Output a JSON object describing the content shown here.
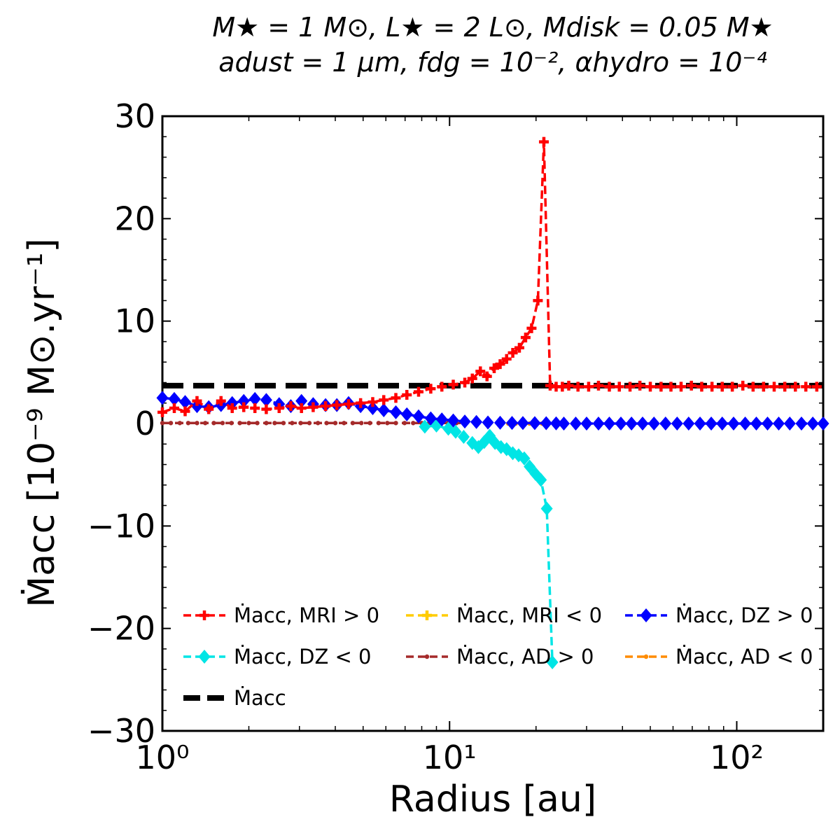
{
  "chart_data": {
    "type": "line",
    "title_lines": [
      "M★ = 1 M⊙, L★ = 2 L⊙, Mdisk = 0.05 M★",
      "adust = 1 μm, fdg = 10⁻², αhydro = 10⁻⁴"
    ],
    "xlabel": "Radius [au]",
    "ylabel": "Ṁacc [10⁻⁹ M⊙.yr⁻¹]",
    "xscale": "log",
    "xlim": [
      1,
      200
    ],
    "ylim": [
      -30,
      30
    ],
    "x_ticks": [
      {
        "value": 1,
        "label": "10⁰"
      },
      {
        "value": 10,
        "label": "10¹"
      },
      {
        "value": 100,
        "label": "10²"
      }
    ],
    "y_ticks": [
      {
        "value": 30,
        "label": "30"
      },
      {
        "value": 20,
        "label": "20"
      },
      {
        "value": 10,
        "label": "10"
      },
      {
        "value": 0,
        "label": "0"
      },
      {
        "value": -10,
        "label": "−10"
      },
      {
        "value": -20,
        "label": "−20"
      },
      {
        "value": -30,
        "label": "−30"
      }
    ],
    "legend_position": "lower-center",
    "series": [
      {
        "name": "Ṁacc, MRI > 0",
        "color": "#ff0000",
        "marker": "plus",
        "x": [
          1.0,
          1.1,
          1.2,
          1.32,
          1.45,
          1.6,
          1.75,
          1.92,
          2.1,
          2.3,
          2.55,
          2.8,
          3.05,
          3.35,
          3.7,
          4.05,
          4.45,
          4.9,
          5.4,
          5.9,
          6.5,
          7.1,
          7.8,
          8.6,
          9.4,
          10.3,
          11.3,
          12.0,
          12.8,
          13.5,
          14.3,
          15.0,
          15.8,
          16.6,
          17.5,
          18.4,
          19.3,
          20.3,
          21.3,
          22.4,
          23.5,
          24.7,
          26.0,
          28.0,
          30.5,
          33.0,
          36.0,
          39.0,
          42.5,
          46.0,
          50.0,
          54.5,
          59.0,
          64.0,
          69.5,
          75.5,
          82.0,
          89.0,
          96.5,
          105.0,
          114.0,
          124.0,
          135.0,
          147.0,
          160.0,
          174.0,
          190.0
        ],
        "y": [
          1.1,
          1.5,
          1.2,
          2.2,
          1.4,
          2.2,
          1.5,
          1.6,
          1.5,
          1.4,
          1.5,
          1.7,
          1.5,
          1.6,
          1.7,
          1.8,
          1.9,
          2.0,
          2.1,
          2.3,
          2.5,
          2.8,
          3.1,
          3.4,
          3.6,
          3.8,
          4.0,
          4.4,
          5.1,
          4.6,
          5.4,
          5.8,
          6.3,
          6.9,
          7.4,
          8.4,
          9.3,
          12.0,
          27.5,
          3.7,
          3.6,
          3.6,
          3.7,
          3.6,
          3.6,
          3.7,
          3.6,
          3.6,
          3.6,
          3.7,
          3.6,
          3.6,
          3.6,
          3.6,
          3.7,
          3.6,
          3.6,
          3.6,
          3.6,
          3.7,
          3.6,
          3.6,
          3.6,
          3.6,
          3.6,
          3.6,
          3.6
        ]
      },
      {
        "name": "Ṁacc, MRI < 0",
        "color": "#ffcc00",
        "marker": "plus",
        "x": [],
        "y": []
      },
      {
        "name": "Ṁacc, DZ > 0",
        "color": "#0000ff",
        "marker": "diamond",
        "x": [
          1.0,
          1.1,
          1.2,
          1.32,
          1.45,
          1.6,
          1.75,
          1.92,
          2.1,
          2.3,
          2.55,
          2.8,
          3.05,
          3.35,
          3.7,
          4.05,
          4.45,
          4.9,
          5.4,
          5.9,
          6.5,
          7.1,
          7.8,
          8.6,
          9.4,
          10.3,
          11.3,
          12.4,
          13.6,
          15.0,
          16.5,
          18.0,
          19.8,
          21.7,
          23.5,
          25.0,
          27.5,
          30.0,
          33.0,
          36.0,
          39.5,
          43.0,
          47.0,
          51.5,
          56.5,
          62.0,
          68.0,
          74.5,
          81.5,
          89.0,
          97.5,
          107.0,
          117.0,
          128.0,
          140.0,
          153.0,
          168.0,
          184.0,
          200.0
        ],
        "y": [
          2.5,
          2.4,
          2.1,
          1.7,
          1.6,
          1.8,
          2.0,
          2.2,
          2.4,
          2.3,
          1.9,
          1.7,
          2.2,
          1.9,
          1.8,
          1.8,
          2.0,
          1.7,
          1.5,
          1.3,
          1.1,
          0.9,
          0.7,
          0.5,
          0.4,
          0.3,
          0.2,
          0.15,
          0.1,
          0.08,
          0.06,
          0.05,
          0.04,
          0.03,
          0.02,
          0.0,
          0.0,
          0.0,
          0.0,
          0.0,
          0.0,
          0.0,
          0.0,
          0.0,
          0.0,
          0.0,
          0.0,
          0.0,
          0.0,
          0.0,
          0.0,
          0.0,
          0.0,
          0.0,
          0.0,
          0.0,
          0.0,
          0.0,
          0.0
        ]
      },
      {
        "name": "Ṁacc, DZ < 0",
        "color": "#00e5e5",
        "marker": "diamond",
        "x": [
          8.2,
          9.0,
          9.9,
          10.5,
          11.2,
          12.0,
          12.6,
          13.2,
          13.8,
          14.4,
          15.1,
          15.8,
          16.6,
          17.4,
          18.2,
          19.0,
          19.9,
          20.8,
          21.8,
          22.8
        ],
        "y": [
          -0.3,
          -0.2,
          -0.5,
          -0.8,
          -1.3,
          -1.9,
          -2.3,
          -1.8,
          -1.2,
          -1.9,
          -2.3,
          -2.5,
          -2.9,
          -3.1,
          -3.4,
          -4.2,
          -4.9,
          -5.5,
          -8.3,
          -23.3
        ]
      },
      {
        "name": "Ṁacc, AD > 0",
        "color": "#a52a2a",
        "marker": "dot",
        "x": [
          1.0,
          1.07,
          1.15,
          1.23,
          1.32,
          1.41,
          1.51,
          1.62,
          1.74,
          1.86,
          2.0,
          2.14,
          2.3,
          2.46,
          2.64,
          2.83,
          3.03,
          3.25,
          3.48,
          3.73,
          4.0,
          4.29,
          4.6,
          4.93,
          5.28,
          5.66,
          6.07,
          6.5,
          6.97,
          7.47,
          8.0,
          8.58,
          9.2,
          9.86,
          10.57,
          11.3
        ],
        "y": [
          0.05,
          0.05,
          0.05,
          0.05,
          0.05,
          0.05,
          0.05,
          0.05,
          0.05,
          0.05,
          0.05,
          0.05,
          0.05,
          0.05,
          0.05,
          0.05,
          0.05,
          0.05,
          0.05,
          0.05,
          0.05,
          0.05,
          0.05,
          0.05,
          0.05,
          0.05,
          0.05,
          0.05,
          0.05,
          0.05,
          0.05,
          0.05,
          0.05,
          0.05,
          0.05,
          0.05
        ]
      },
      {
        "name": "Ṁacc, AD < 0",
        "color": "#ff8c00",
        "marker": "dot",
        "x": [
          16.0,
          17.0,
          18.0,
          19.0,
          20.0,
          21.0,
          22.0
        ],
        "y": [
          0.0,
          0.0,
          0.0,
          0.0,
          0.0,
          0.0,
          0.0
        ]
      },
      {
        "name": "Ṁacc",
        "color": "#000000",
        "marker": "none",
        "x": [
          1.0,
          200.0
        ],
        "y": [
          3.7,
          3.7
        ]
      }
    ]
  }
}
